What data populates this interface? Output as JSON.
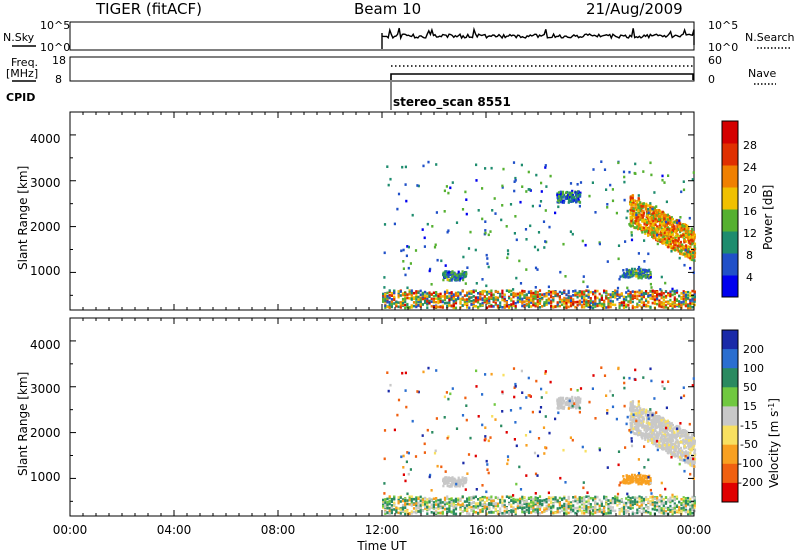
{
  "header": {
    "radar": "TIGER (fitACF)",
    "beam": "Beam 10",
    "date": "21/Aug/2009"
  },
  "nsky_panel": {
    "left_label": "N.Sky",
    "right_label": "N.Search",
    "left_ticks": [
      "10^5",
      "10^0"
    ],
    "right_ticks": [
      "10^5",
      "10^0"
    ]
  },
  "freq_panel": {
    "left_label_line1": "Freq.",
    "left_label_line2": "[MHz]",
    "right_label": "Nave",
    "left_ticks": [
      "18",
      "8"
    ],
    "right_ticks": [
      "60",
      "0"
    ]
  },
  "cpid": {
    "label": "CPID",
    "program": "stereo_scan 8551"
  },
  "power_panel": {
    "ylabel": "Slant Range [km]",
    "yticks": [
      "4000",
      "3000",
      "2000",
      "1000"
    ],
    "colorbar_label": "Power [dB]",
    "colorbar_ticks": [
      "28",
      "24",
      "20",
      "16",
      "12",
      "8",
      "4"
    ],
    "colors": [
      "#0000ee",
      "#2050c8",
      "#1e8c6e",
      "#55b030",
      "#f0c000",
      "#f08000",
      "#e03000",
      "#d40000"
    ]
  },
  "velocity_panel": {
    "ylabel": "Slant Range [km]",
    "yticks": [
      "4000",
      "3000",
      "2000",
      "1000"
    ],
    "colorbar_label": "Velocity [m s^-1]",
    "colorbar_ticks": [
      "200",
      "100",
      "50",
      "15",
      "-15",
      "-50",
      "-100",
      "-200"
    ],
    "colors": [
      "#1a2aa8",
      "#2a6ed0",
      "#2a8a60",
      "#70c840",
      "#c8c8c8",
      "#f8e060",
      "#f8a020",
      "#f06010",
      "#e00000"
    ]
  },
  "x_axis": {
    "label": "Time UT",
    "ticks": [
      "00:00",
      "04:00",
      "08:00",
      "12:00",
      "16:00",
      "20:00",
      "00:00"
    ]
  },
  "chart_data": {
    "type": "heatmap",
    "title": "TIGER (fitACF)  Beam 10  21/Aug/2009",
    "xlabel": "Time UT",
    "ylabel": "Slant Range [km]",
    "xlim": [
      "00:00",
      "24:00"
    ],
    "ylim": [
      180,
      4500
    ],
    "data_start": "12:00",
    "power_range_db": [
      0,
      32
    ],
    "velocity_range": [
      -250,
      250
    ],
    "echo_regions": [
      {
        "name": "near range ground scatter",
        "t_start": 12.0,
        "t_end": 24.0,
        "range_min": 200,
        "range_max": 550,
        "power_db": 12,
        "velocity": 20
      },
      {
        "name": "patch 14:30",
        "t_start": 14.3,
        "t_end": 15.2,
        "range_min": 800,
        "range_max": 1000,
        "power_db": 10,
        "velocity": 0
      },
      {
        "name": "patch 19:00",
        "t_start": 18.7,
        "t_end": 19.6,
        "range_min": 2500,
        "range_max": 2750,
        "power_db": 8,
        "velocity": 0
      },
      {
        "name": "patch 21:30",
        "t_start": 21.2,
        "t_end": 22.3,
        "range_min": 850,
        "range_max": 1050,
        "power_db": 10,
        "velocity": -60
      },
      {
        "name": "main echo 22:00-24:00",
        "t_start": 21.5,
        "t_end": 24.0,
        "range_min": 1300,
        "range_max": 2500,
        "power_db": 20,
        "velocity": -5
      }
    ]
  }
}
